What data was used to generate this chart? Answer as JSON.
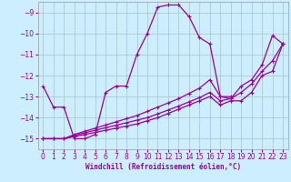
{
  "xlabel": "Windchill (Refroidissement éolien,°C)",
  "bg_color": "#cceeff",
  "grid_color": "#aacccc",
  "line_color": "#990099",
  "xlim": [
    -0.5,
    23.5
  ],
  "ylim": [
    -15.5,
    -8.5
  ],
  "yticks": [
    -15,
    -14,
    -13,
    -12,
    -11,
    -10,
    -9
  ],
  "xticks": [
    0,
    1,
    2,
    3,
    4,
    5,
    6,
    7,
    8,
    9,
    10,
    11,
    12,
    13,
    14,
    15,
    16,
    17,
    18,
    19,
    20,
    21,
    22,
    23
  ],
  "series": [
    {
      "x": [
        0,
        1,
        2,
        3,
        4,
        5,
        6,
        7,
        8,
        9,
        10,
        11,
        12,
        13,
        14,
        15,
        16,
        17,
        18
      ],
      "y": [
        -12.5,
        -13.5,
        -13.5,
        -15.0,
        -15.0,
        -14.8,
        -12.8,
        -12.5,
        -12.5,
        -11.0,
        -10.0,
        -8.75,
        -8.65,
        -8.65,
        -9.2,
        -10.2,
        -10.5,
        -13.0,
        -13.0
      ]
    },
    {
      "x": [
        0,
        1,
        2,
        3,
        4,
        5,
        6,
        7,
        8,
        9,
        10,
        11,
        12,
        13,
        14,
        15,
        16,
        17,
        18,
        19,
        20,
        21,
        22,
        23
      ],
      "y": [
        -15.0,
        -15.0,
        -15.0,
        -14.8,
        -14.65,
        -14.5,
        -14.35,
        -14.2,
        -14.05,
        -13.9,
        -13.7,
        -13.5,
        -13.3,
        -13.1,
        -12.85,
        -12.6,
        -12.2,
        -13.0,
        -13.1,
        -12.5,
        -12.2,
        -11.5,
        -10.1,
        -10.5
      ]
    },
    {
      "x": [
        0,
        1,
        2,
        3,
        4,
        5,
        6,
        7,
        8,
        9,
        10,
        11,
        12,
        13,
        14,
        15,
        16,
        17,
        18,
        19,
        20,
        21,
        22,
        23
      ],
      "y": [
        -15.0,
        -15.0,
        -15.0,
        -14.85,
        -14.72,
        -14.6,
        -14.48,
        -14.36,
        -14.24,
        -14.12,
        -14.0,
        -13.82,
        -13.64,
        -13.45,
        -13.25,
        -13.05,
        -12.8,
        -13.2,
        -13.1,
        -12.8,
        -12.4,
        -11.8,
        -11.3,
        -10.5
      ]
    },
    {
      "x": [
        0,
        1,
        2,
        3,
        4,
        5,
        6,
        7,
        8,
        9,
        10,
        11,
        12,
        13,
        14,
        15,
        16,
        17,
        18,
        19,
        20,
        21,
        22,
        23
      ],
      "y": [
        -15.0,
        -15.0,
        -15.0,
        -14.9,
        -14.8,
        -14.7,
        -14.6,
        -14.5,
        -14.4,
        -14.3,
        -14.15,
        -14.0,
        -13.8,
        -13.6,
        -13.4,
        -13.2,
        -13.0,
        -13.4,
        -13.2,
        -13.2,
        -12.8,
        -12.0,
        -11.8,
        -10.5
      ]
    }
  ],
  "marker": "+",
  "markersize": 3,
  "linewidth": 0.9,
  "tick_fontsize": 5.5,
  "xlabel_fontsize": 5.5
}
